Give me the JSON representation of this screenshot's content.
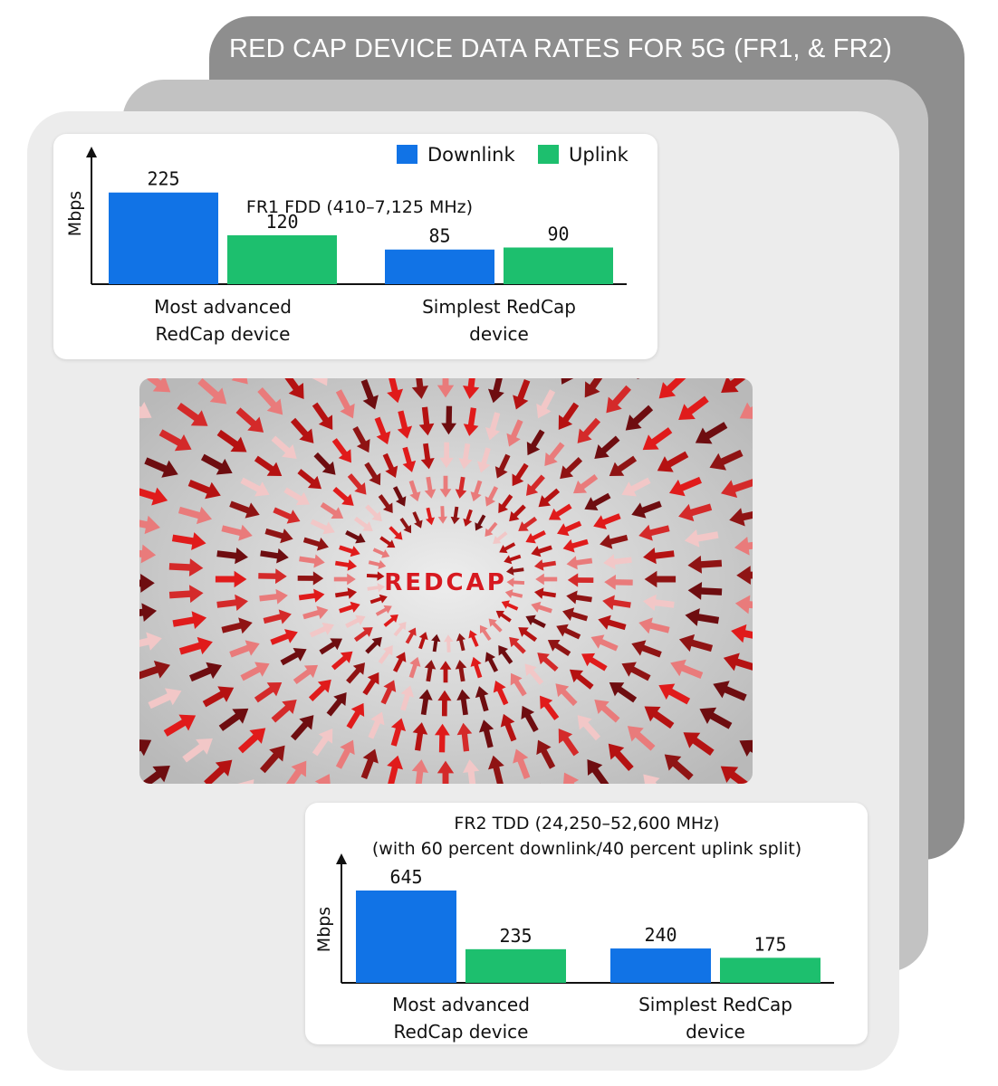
{
  "title": "RED CAP DEVICE DATA RATES FOR 5G (FR1, & FR2)",
  "image_label": "REDCAP",
  "colors": {
    "downlink": "#1173e6",
    "uplink": "#1dbf6e",
    "back_card": "#8e8e8e",
    "mid_card": "#c2c2c2",
    "front_card": "#ececec"
  },
  "chart_data": [
    {
      "type": "bar",
      "title": "FR1 FDD (410–7,125 MHz)",
      "subtitle": "",
      "ylabel": "Mbps",
      "xlabel": "",
      "legend": {
        "position": "top-right",
        "entries": [
          "Downlink",
          "Uplink"
        ]
      },
      "categories": [
        "Most advanced\nRedCap device",
        "Simplest RedCap\ndevice"
      ],
      "series": [
        {
          "name": "Downlink",
          "values": [
            225,
            85
          ]
        },
        {
          "name": "Uplink",
          "values": [
            120,
            90
          ]
        }
      ],
      "ylim": [
        0,
        240
      ],
      "grid": false
    },
    {
      "type": "bar",
      "title": "FR2 TDD (24,250–52,600 MHz)",
      "subtitle": "(with 60 percent downlink/40 percent uplink split)",
      "ylabel": "Mbps",
      "xlabel": "",
      "categories": [
        "Most advanced\nRedCap device",
        "Simplest RedCap\ndevice"
      ],
      "series": [
        {
          "name": "Downlink",
          "values": [
            645,
            240
          ]
        },
        {
          "name": "Uplink",
          "values": [
            235,
            175
          ]
        }
      ],
      "ylim": [
        0,
        690
      ],
      "grid": false
    }
  ]
}
